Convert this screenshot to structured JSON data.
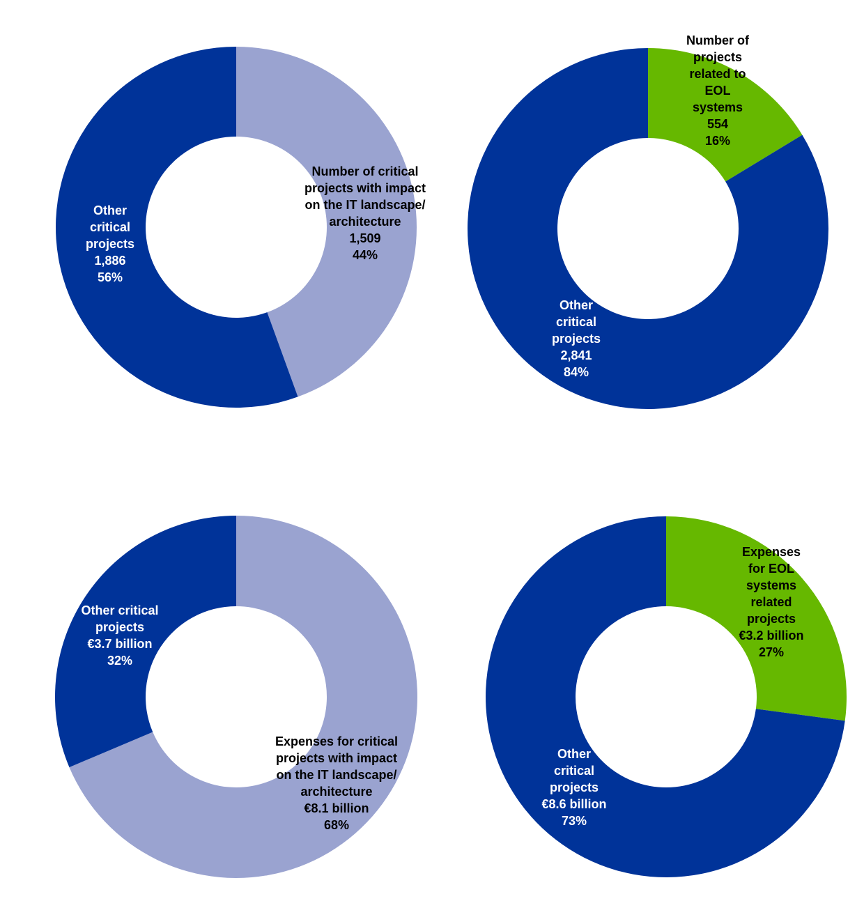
{
  "chart_data": [
    {
      "type": "donut",
      "categories": [
        "Number of critical projects with impact on the IT landscape/ architecture",
        "Other critical projects"
      ],
      "values": [
        1509,
        1886
      ],
      "value_labels": [
        "1,509",
        "1,886"
      ],
      "shares": [
        {
          "value": 44,
          "label": "44%"
        },
        {
          "value": 56,
          "label": "56%"
        }
      ],
      "colors": [
        "#9aa3d0",
        "#003399"
      ]
    },
    {
      "type": "donut",
      "categories": [
        "Number of projects related to EOL systems",
        "Other critical projects"
      ],
      "values": [
        554,
        2841
      ],
      "value_labels": [
        "554",
        "2,841"
      ],
      "shares": [
        {
          "value": 16,
          "label": "16%"
        },
        {
          "value": 84,
          "label": "84%"
        }
      ],
      "colors": [
        "#66b800",
        "#003399"
      ]
    },
    {
      "type": "donut",
      "categories": [
        "Expenses for critical projects with impact on the IT landscape/ architecture",
        "Other critical projects"
      ],
      "values": [
        8.1,
        3.7
      ],
      "value_labels": [
        "€8.1 billion",
        "€3.7 billion"
      ],
      "shares": [
        {
          "value": 68,
          "label": "68%"
        },
        {
          "value": 32,
          "label": "32%"
        }
      ],
      "colors": [
        "#9aa3d0",
        "#003399"
      ]
    },
    {
      "type": "donut",
      "categories": [
        "Expenses for EOL systems related projects",
        "Other critical projects"
      ],
      "values": [
        3.2,
        8.6
      ],
      "value_labels": [
        "€3.2 billion",
        "€8.6 billion"
      ],
      "shares": [
        {
          "value": 27,
          "label": "27%"
        },
        {
          "value": 73,
          "label": "73%"
        }
      ],
      "colors": [
        "#66b800",
        "#003399"
      ]
    }
  ]
}
